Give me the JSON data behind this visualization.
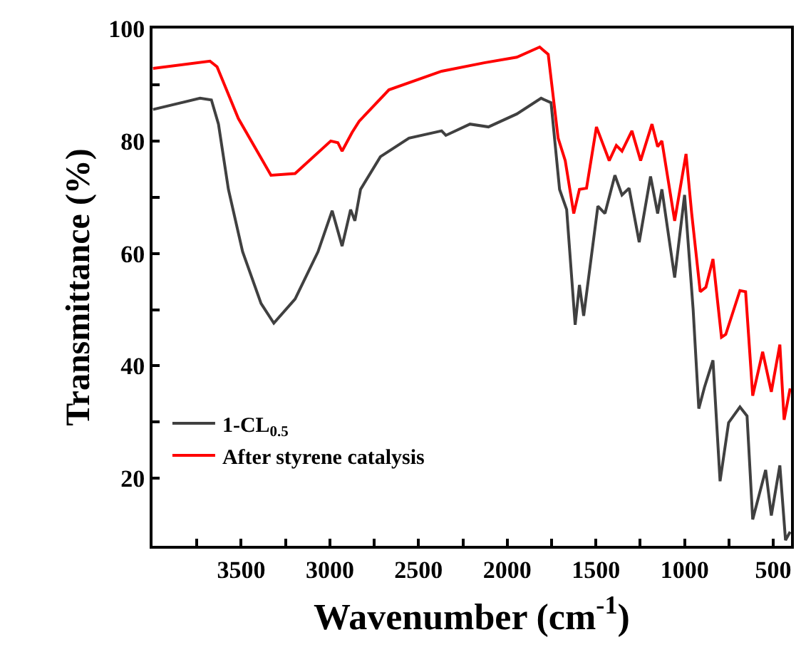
{
  "chart_data": {
    "type": "line",
    "xlabel": "Wavenumber (cm$^{-1}$)",
    "ylabel": "Transmittance (%)",
    "xlim": [
      4000,
      400
    ],
    "ylim": [
      8,
      100
    ],
    "xticks": [
      {
        "value": 3750,
        "label": null
      },
      3500,
      {
        "value": 3250,
        "label": null
      },
      3000,
      {
        "value": 2750,
        "label": null
      },
      2500,
      {
        "value": 2250,
        "label": null
      },
      2000,
      {
        "value": 1750,
        "label": null
      },
      1500,
      {
        "value": 1250,
        "label": null
      },
      1000,
      {
        "value": 750,
        "label": null
      },
      500
    ],
    "yticks": [
      20,
      {
        "value": 30,
        "label": null
      },
      40,
      {
        "value": 50,
        "label": null
      },
      60,
      {
        "value": 70,
        "label": null
      },
      80,
      {
        "value": 90,
        "label": null
      },
      100
    ],
    "grid": false,
    "legend": "bottom left",
    "marker": "none",
    "line_style": "solid",
    "series": [
      {
        "name": "1-CL$_{0.5}$",
        "color": "#404040",
        "x": [
          3997,
          3732,
          3668,
          3628,
          3572,
          3492,
          3388,
          3316,
          3196,
          3067,
          2987,
          2931,
          2883,
          2859,
          2827,
          2715,
          2554,
          2370,
          2346,
          2210,
          2106,
          1946,
          1809,
          1753,
          1705,
          1665,
          1617,
          1593,
          1569,
          1489,
          1449,
          1393,
          1353,
          1313,
          1256,
          1192,
          1152,
          1128,
          1056,
          1000,
          952,
          920,
          888,
          840,
          800,
          752,
          688,
          648,
          616,
          543,
          511,
          463,
          431,
          405
        ],
        "values": [
          85.6,
          87.6,
          87.3,
          83,
          71.4,
          60.3,
          51.1,
          47.6,
          51.9,
          60.3,
          67.6,
          61.3,
          67.8,
          65.8,
          71.4,
          77.2,
          80.5,
          81.8,
          81,
          83,
          82.5,
          84.8,
          87.6,
          86.8,
          71.4,
          67.8,
          47.3,
          54.4,
          48.9,
          68.4,
          67.1,
          73.9,
          70.4,
          71.6,
          62,
          73.7,
          67.1,
          71.4,
          55.7,
          70.4,
          50.1,
          32.4,
          36.2,
          41,
          19.5,
          29.9,
          32.7,
          31.1,
          12.7,
          21.5,
          13.4,
          22.3,
          9,
          10.5
        ]
      },
      {
        "name": "After styrene catalysis",
        "color": "#ff0000",
        "x": [
          3997,
          3676,
          3636,
          3516,
          3332,
          3196,
          2995,
          2955,
          2931,
          2875,
          2835,
          2667,
          2370,
          2130,
          1946,
          1817,
          1769,
          1713,
          1673,
          1625,
          1593,
          1553,
          1497,
          1425,
          1385,
          1353,
          1297,
          1248,
          1184,
          1152,
          1128,
          1056,
          992,
          960,
          912,
          880,
          840,
          792,
          768,
          688,
          656,
          616,
          560,
          511,
          463,
          439,
          405
        ],
        "values": [
          92.9,
          94.2,
          93.2,
          84,
          73.9,
          74.2,
          80,
          79.7,
          78.2,
          81.5,
          83.5,
          89.1,
          92.4,
          93.9,
          94.9,
          96.7,
          95.4,
          80.5,
          76.5,
          67.1,
          71.4,
          71.6,
          82.5,
          76.5,
          79.2,
          78.2,
          81.8,
          76.5,
          83,
          79,
          80,
          65.8,
          77.7,
          67.1,
          53.2,
          54,
          59,
          45.1,
          45.6,
          53.4,
          53.2,
          34.7,
          42.5,
          35.4,
          43.8,
          30.4,
          36
        ]
      }
    ]
  }
}
